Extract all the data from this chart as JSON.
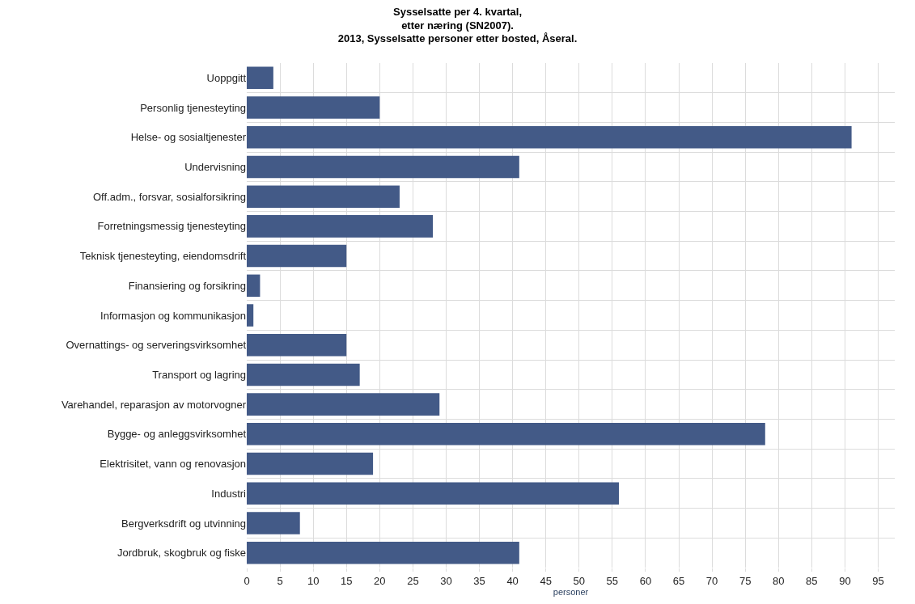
{
  "chart_data": {
    "type": "bar",
    "orientation": "horizontal",
    "title": "Sysselsatte per 4. kvartal,\netter næring (SN2007).\n2013, Sysselsatte personer etter bosted, Åseral.",
    "xlabel": "personer",
    "categories": [
      "Uoppgitt",
      "Personlig tjenesteyting",
      "Helse- og sosialtjenester",
      "Undervisning",
      "Off.adm., forsvar, sosialforsikring",
      "Forretningsmessig tjenesteyting",
      "Teknisk tjenesteyting, eiendomsdrift",
      "Finansiering og forsikring",
      "Informasjon og kommunikasjon",
      "Overnattings- og serveringsvirksomhet",
      "Transport og lagring",
      "Varehandel, reparasjon av motorvogner",
      "Bygge- og anleggsvirksomhet",
      "Elektrisitet, vann og renovasjon",
      "Industri",
      "Bergverksdrift og utvinning",
      "Jordbruk, skogbruk og fiske"
    ],
    "values": [
      4,
      20,
      91,
      41,
      23,
      28,
      15,
      2,
      1,
      15,
      17,
      29,
      78,
      19,
      56,
      8,
      41
    ],
    "color": "#435a87",
    "xlim": [
      0,
      97.5
    ],
    "xticks": [
      0,
      5,
      10,
      15,
      20,
      25,
      30,
      35,
      40,
      45,
      50,
      55,
      60,
      65,
      70,
      75,
      80,
      85,
      90,
      95
    ],
    "grid": true
  }
}
